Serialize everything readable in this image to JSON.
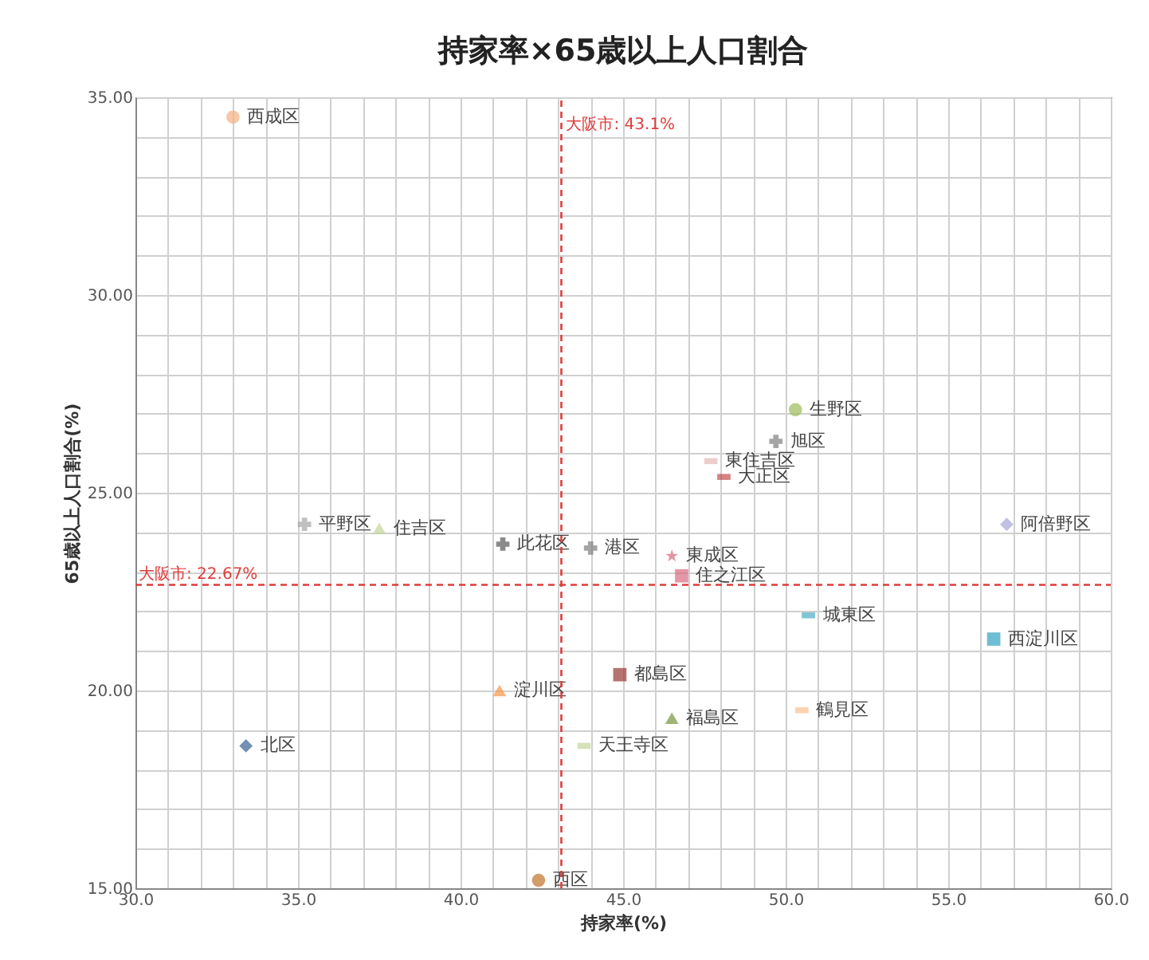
{
  "chart_data": {
    "type": "scatter",
    "title": "持家率×65歳以上人口割合",
    "xlabel": "持家率(%)",
    "ylabel": "65歳以上人口割合(%)",
    "xlim": [
      30,
      60
    ],
    "ylim": [
      15,
      35
    ],
    "xticks": [
      {
        "value": 30,
        "label": "30.0"
      },
      {
        "value": 31,
        "label": null
      },
      {
        "value": 32,
        "label": null
      },
      {
        "value": 33,
        "label": null
      },
      {
        "value": 34,
        "label": null
      },
      {
        "value": 35,
        "label": "35.0"
      },
      {
        "value": 36,
        "label": null
      },
      {
        "value": 37,
        "label": null
      },
      {
        "value": 38,
        "label": null
      },
      {
        "value": 39,
        "label": null
      },
      {
        "value": 40,
        "label": "40.0"
      },
      {
        "value": 41,
        "label": null
      },
      {
        "value": 42,
        "label": null
      },
      {
        "value": 43,
        "label": null
      },
      {
        "value": 44,
        "label": null
      },
      {
        "value": 45,
        "label": "45.0"
      },
      {
        "value": 46,
        "label": null
      },
      {
        "value": 47,
        "label": null
      },
      {
        "value": 48,
        "label": null
      },
      {
        "value": 49,
        "label": null
      },
      {
        "value": 50,
        "label": "50.0"
      },
      {
        "value": 51,
        "label": null
      },
      {
        "value": 52,
        "label": null
      },
      {
        "value": 53,
        "label": null
      },
      {
        "value": 54,
        "label": null
      },
      {
        "value": 55,
        "label": "55.0"
      },
      {
        "value": 56,
        "label": null
      },
      {
        "value": 57,
        "label": null
      },
      {
        "value": 58,
        "label": null
      },
      {
        "value": 59,
        "label": null
      },
      {
        "value": 60,
        "label": "60.0"
      }
    ],
    "yticks": [
      {
        "value": 15,
        "label": "15.00"
      },
      {
        "value": 16,
        "label": null
      },
      {
        "value": 17,
        "label": null
      },
      {
        "value": 18,
        "label": null
      },
      {
        "value": 19,
        "label": null
      },
      {
        "value": 20,
        "label": "20.00"
      },
      {
        "value": 21,
        "label": null
      },
      {
        "value": 22,
        "label": null
      },
      {
        "value": 23,
        "label": null
      },
      {
        "value": 24,
        "label": null
      },
      {
        "value": 25,
        "label": "25.00"
      },
      {
        "value": 26,
        "label": null
      },
      {
        "value": 27,
        "label": null
      },
      {
        "value": 28,
        "label": null
      },
      {
        "value": 29,
        "label": null
      },
      {
        "value": 30,
        "label": "30.00"
      },
      {
        "value": 31,
        "label": null
      },
      {
        "value": 32,
        "label": null
      },
      {
        "value": 33,
        "label": null
      },
      {
        "value": 34,
        "label": null
      },
      {
        "value": 35,
        "label": "35.00"
      }
    ],
    "grid": true,
    "legend": false,
    "ref_lines": [
      {
        "axis": "x",
        "value": 43.1,
        "label": "大阪市: 43.1%",
        "color": "#e03c3c",
        "line_style": "dashed"
      },
      {
        "axis": "y",
        "value": 22.67,
        "label": "大阪市: 22.67%",
        "color": "#e03c3c",
        "line_style": "dashed"
      }
    ],
    "series": [
      {
        "name": "西成区",
        "color": "#f4b183",
        "marker": "circle",
        "x": [
          33.0
        ],
        "values": [
          34.5
        ]
      },
      {
        "name": "生野区",
        "color": "#9bbb59",
        "marker": "circle",
        "x": [
          50.3
        ],
        "values": [
          27.1
        ]
      },
      {
        "name": "旭区",
        "color": "#7f7f7f",
        "marker": "cross",
        "x": [
          49.7
        ],
        "values": [
          26.3
        ]
      },
      {
        "name": "東住吉区",
        "color": "#e6b9b8",
        "x": [
          47.7
        ],
        "values": [
          25.8
        ]
      },
      {
        "name": "大正区",
        "color": "#c0504d",
        "x": [
          48.1
        ],
        "values": [
          25.4
        ]
      },
      {
        "name": "阿倍野区",
        "color": "#a5a5d9",
        "marker": "diamond",
        "x": [
          56.8
        ],
        "values": [
          24.2
        ]
      },
      {
        "name": "住吉区",
        "color": "#c3d69b",
        "marker": "triangle",
        "x": [
          37.5
        ],
        "values": [
          24.1
        ]
      },
      {
        "name": "平野区",
        "color": "#a6a6a6",
        "marker": "cross",
        "x": [
          35.2
        ],
        "values": [
          24.2
        ]
      },
      {
        "name": "此花区",
        "color": "#595959",
        "marker": "cross",
        "x": [
          41.3
        ],
        "values": [
          23.7
        ]
      },
      {
        "name": "港区",
        "color": "#7f7f7f",
        "marker": "cross",
        "x": [
          44.0
        ],
        "values": [
          23.6
        ]
      },
      {
        "name": "東成区",
        "color": "#d9667a",
        "marker": "star",
        "x": [
          46.5
        ],
        "values": [
          23.4
        ]
      },
      {
        "name": "住之江区",
        "color": "#d86b82",
        "marker": "square",
        "x": [
          46.8
        ],
        "values": [
          22.9
        ]
      },
      {
        "name": "城東区",
        "color": "#4bacc6",
        "x": [
          50.7
        ],
        "values": [
          21.9
        ]
      },
      {
        "name": "西淀川区",
        "color": "#31a2c0",
        "marker": "square",
        "x": [
          56.4
        ],
        "values": [
          21.3
        ]
      },
      {
        "name": "都島区",
        "color": "#953735",
        "marker": "square",
        "x": [
          44.9
        ],
        "values": [
          20.4
        ]
      },
      {
        "name": "淀川区",
        "color": "#f79646",
        "marker": "triangle",
        "x": [
          41.2
        ],
        "values": [
          20.0
        ]
      },
      {
        "name": "福島区",
        "color": "#77933c",
        "marker": "triangle",
        "x": [
          46.5
        ],
        "values": [
          19.3
        ]
      },
      {
        "name": "鶴見区",
        "color": "#fac090",
        "x": [
          50.5
        ],
        "values": [
          19.5
        ]
      },
      {
        "name": "北区",
        "color": "#376092",
        "marker": "diamond",
        "x": [
          33.4
        ],
        "values": [
          18.6
        ]
      },
      {
        "name": "天王寺区",
        "color": "#c3d69b",
        "x": [
          43.8
        ],
        "values": [
          18.6
        ]
      },
      {
        "name": "西区",
        "color": "#c0732c",
        "marker": "circle",
        "x": [
          42.4
        ],
        "values": [
          15.2
        ]
      }
    ]
  }
}
